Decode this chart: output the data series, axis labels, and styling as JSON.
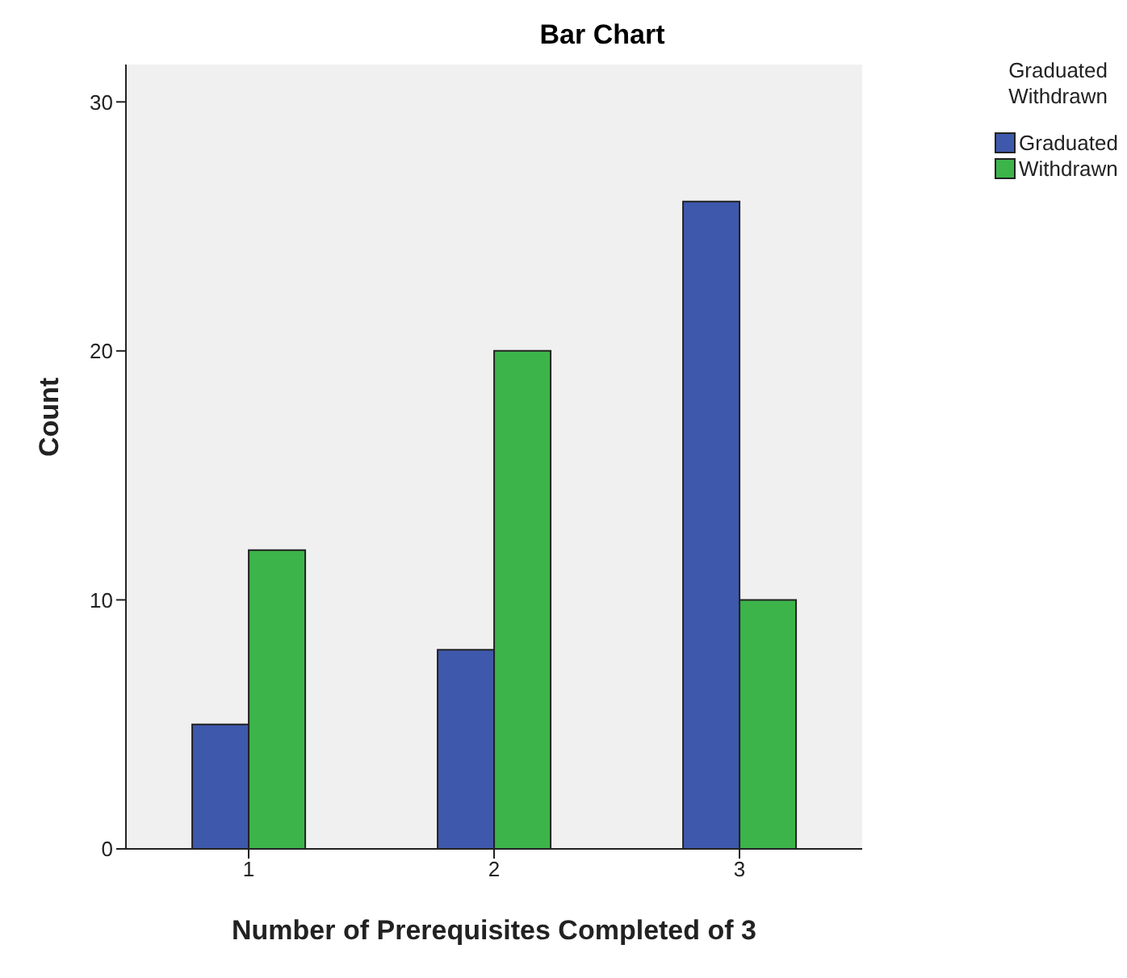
{
  "chart_data": {
    "type": "bar",
    "title": "Bar Chart",
    "xlabel": "Number of Prerequisites Completed of 3",
    "ylabel": "Count",
    "legend_title": "Graduated Withdrawn",
    "categories": [
      "1",
      "2",
      "3"
    ],
    "series": [
      {
        "name": "Graduated",
        "color": "#3e58ac",
        "values": [
          5,
          8,
          26
        ]
      },
      {
        "name": "Withdrawn",
        "color": "#3cb44a",
        "values": [
          12,
          20,
          10
        ]
      }
    ],
    "ylim": [
      0,
      31.5
    ],
    "yticks": [
      0,
      10,
      20,
      30
    ],
    "legend": "top right"
  }
}
